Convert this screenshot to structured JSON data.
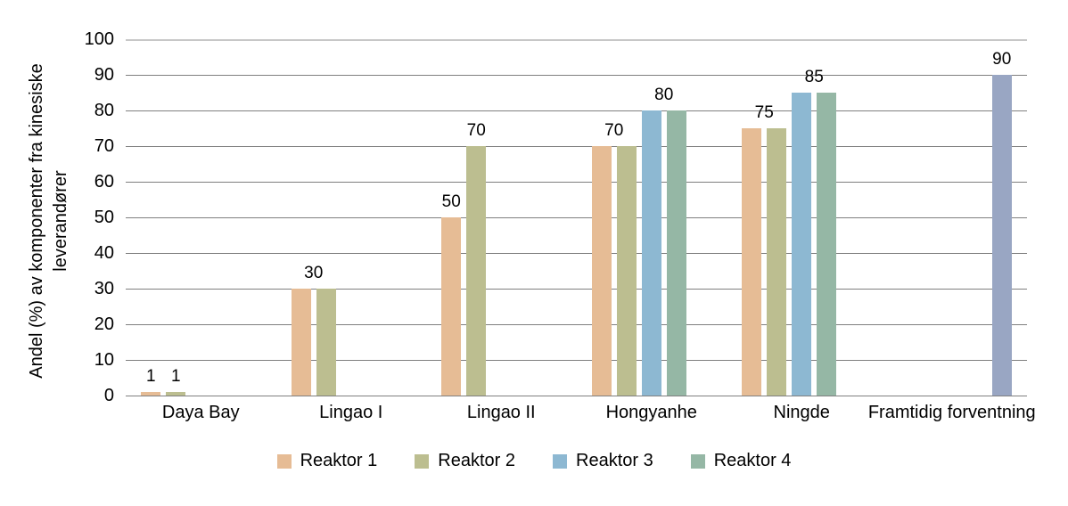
{
  "page": {
    "background": "#ffffff",
    "text_color": "#000000"
  },
  "chart_data": {
    "type": "bar",
    "title": "",
    "xlabel": "",
    "ylabel": {
      "line1": "Andel (%) av komponenter fra kinesiske",
      "line2": "leverandører"
    },
    "categories": [
      "Daya Bay",
      "Lingao I",
      "Lingao II",
      "Hongyanhe",
      "Ningde",
      "Framtidig forventning"
    ],
    "series": [
      {
        "name": "Reaktor 1",
        "color": "#e6bc95",
        "in_legend": true,
        "values": [
          1,
          30,
          50,
          70,
          75,
          null
        ]
      },
      {
        "name": "Reaktor 2",
        "color": "#bcbe90",
        "in_legend": true,
        "values": [
          1,
          30,
          70,
          70,
          75,
          null
        ]
      },
      {
        "name": "Reaktor 3",
        "color": "#8db8d2",
        "in_legend": true,
        "values": [
          null,
          null,
          null,
          80,
          85,
          null
        ]
      },
      {
        "name": "Reaktor 4",
        "color": "#95b7a5",
        "in_legend": true,
        "values": [
          null,
          null,
          null,
          80,
          85,
          null
        ]
      },
      {
        "name": "Framtidig forventning",
        "color": "#99a6c3",
        "in_legend": false,
        "values": [
          null,
          null,
          null,
          null,
          null,
          90
        ]
      }
    ],
    "bar_labels": [
      {
        "cat": 0,
        "series": [
          0
        ],
        "text": "1"
      },
      {
        "cat": 0,
        "series": [
          1
        ],
        "text": "1"
      },
      {
        "cat": 1,
        "series": [
          0,
          1
        ],
        "text": "30"
      },
      {
        "cat": 2,
        "series": [
          0
        ],
        "text": "50"
      },
      {
        "cat": 2,
        "series": [
          1
        ],
        "text": "70"
      },
      {
        "cat": 3,
        "series": [
          0,
          1
        ],
        "text": "70"
      },
      {
        "cat": 3,
        "series": [
          2,
          3
        ],
        "text": "80"
      },
      {
        "cat": 4,
        "series": [
          0,
          1
        ],
        "text": "75"
      },
      {
        "cat": 4,
        "series": [
          2,
          3
        ],
        "text": "85"
      },
      {
        "cat": 5,
        "series": [
          4
        ],
        "text": "90"
      }
    ],
    "ylim": [
      0,
      100
    ],
    "ytick_step": 10,
    "yticks": [
      0,
      10,
      20,
      30,
      40,
      50,
      60,
      70,
      80,
      90,
      100
    ],
    "grid": "horizontal",
    "legend_position": "bottom",
    "legend": [
      "Reaktor 1",
      "Reaktor 2",
      "Reaktor 3",
      "Reaktor 4"
    ]
  },
  "colors": {
    "gridline": "#7f7f7f",
    "gridline_top": "#c7c7c7",
    "reaktor1": "#e6bc95",
    "reaktor2": "#bcbe90",
    "reaktor3": "#8db8d2",
    "reaktor4": "#95b7a5",
    "framtidig": "#99a6c3"
  }
}
